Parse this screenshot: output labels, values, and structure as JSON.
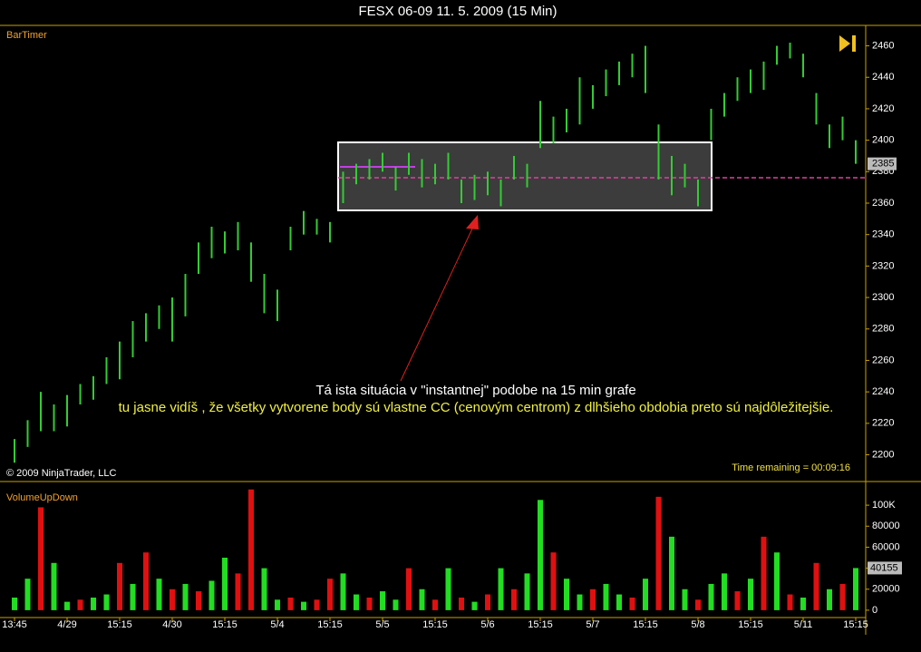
{
  "chart_data": [
    {
      "type": "ohlc",
      "title": "FESX 06-09  11. 5. 2009 (15 Min)",
      "indicator": "BarTimer",
      "copyright": "© 2009 NinjaTrader, LLC",
      "timer": "Time remaining = 00:09:16",
      "annotations": [
        "Tá ista situácia v \"instantnej\" podobe na 15 min grafe",
        "tu jasne vidíš , že všetky vytvorene body sú vlastne CC (cenovým centrom) z dlhšieho obdobia preto sú najdôležitejšie."
      ],
      "color": "#33cc33",
      "high": [
        2210,
        2222,
        2240,
        2232,
        2238,
        2245,
        2250,
        2262,
        2272,
        2285,
        2290,
        2295,
        2300,
        2315,
        2335,
        2345,
        2342,
        2348,
        2335,
        2315,
        2305,
        2345,
        2355,
        2350,
        2348,
        2380,
        2385,
        2388,
        2392,
        2383,
        2392,
        2388,
        2385,
        2392,
        2375,
        2378,
        2380,
        2375,
        2390,
        2385,
        2425,
        2415,
        2420,
        2440,
        2435,
        2445,
        2450,
        2455,
        2460,
        2410,
        2390,
        2385,
        2375,
        2420,
        2430,
        2440,
        2445,
        2450,
        2460,
        2462,
        2455,
        2430,
        2410,
        2415,
        2400
      ],
      "low": [
        2195,
        2205,
        2215,
        2215,
        2218,
        2232,
        2235,
        2245,
        2248,
        2262,
        2272,
        2280,
        2272,
        2288,
        2315,
        2325,
        2328,
        2330,
        2310,
        2290,
        2285,
        2330,
        2340,
        2340,
        2335,
        2360,
        2372,
        2375,
        2380,
        2368,
        2378,
        2370,
        2372,
        2375,
        2360,
        2362,
        2365,
        2358,
        2375,
        2370,
        2395,
        2398,
        2405,
        2410,
        2420,
        2428,
        2435,
        2440,
        2430,
        2375,
        2365,
        2370,
        2358,
        2400,
        2415,
        2425,
        2430,
        2432,
        2448,
        2452,
        2440,
        2410,
        2395,
        2400,
        2385
      ],
      "last_price": 2385,
      "ylim": [
        2183,
        2473
      ],
      "yticks": [
        2200,
        2220,
        2240,
        2260,
        2280,
        2300,
        2320,
        2340,
        2360,
        2380,
        2400,
        2420,
        2440,
        2460
      ]
    },
    {
      "type": "bar",
      "title": "VolumeUpDown",
      "categories": [
        "13:45",
        null,
        null,
        null,
        "4/29",
        null,
        null,
        null,
        "15:15",
        null,
        null,
        null,
        "4/30",
        null,
        null,
        null,
        "15:15",
        null,
        null,
        null,
        "5/4",
        null,
        null,
        null,
        "15:15",
        null,
        null,
        null,
        "5/5",
        null,
        null,
        null,
        "15:15",
        null,
        null,
        null,
        "5/6",
        null,
        null,
        null,
        "15:15",
        null,
        null,
        null,
        "5/7",
        null,
        null,
        null,
        "15:15",
        null,
        null,
        null,
        "5/8",
        null,
        null,
        null,
        "15:15",
        null,
        null,
        null,
        "5/11",
        null,
        null,
        null,
        "15:15"
      ],
      "values": [
        12000,
        30000,
        98000,
        45000,
        8000,
        10000,
        12000,
        15000,
        45000,
        25000,
        55000,
        30000,
        20000,
        25000,
        18000,
        28000,
        50000,
        35000,
        115000,
        40000,
        10000,
        12000,
        8000,
        10000,
        30000,
        35000,
        15000,
        12000,
        18000,
        10000,
        40000,
        20000,
        10000,
        40000,
        12000,
        8000,
        15000,
        40000,
        20000,
        35000,
        105000,
        55000,
        30000,
        15000,
        20000,
        25000,
        15000,
        12000,
        30000,
        108000,
        70000,
        20000,
        10000,
        25000,
        35000,
        18000,
        30000,
        70000,
        55000,
        15000,
        12000,
        45000,
        20000,
        25000,
        40155
      ],
      "colors": [
        "#22dd22",
        "#22dd22",
        "#e01010",
        "#22dd22",
        "#22dd22",
        "#e01010",
        "#22dd22",
        "#22dd22",
        "#e01010",
        "#22dd22",
        "#e01010",
        "#22dd22",
        "#e01010",
        "#22dd22",
        "#e01010",
        "#22dd22",
        "#22dd22",
        "#e01010",
        "#e01010",
        "#22dd22",
        "#22dd22",
        "#e01010",
        "#22dd22",
        "#e01010",
        "#e01010",
        "#22dd22",
        "#22dd22",
        "#e01010",
        "#22dd22",
        "#22dd22",
        "#e01010",
        "#22dd22",
        "#e01010",
        "#22dd22",
        "#e01010",
        "#22dd22",
        "#e01010",
        "#22dd22",
        "#e01010",
        "#22dd22",
        "#22dd22",
        "#e01010",
        "#22dd22",
        "#22dd22",
        "#e01010",
        "#22dd22",
        "#22dd22",
        "#e01010",
        "#22dd22",
        "#e01010",
        "#22dd22",
        "#22dd22",
        "#e01010",
        "#22dd22",
        "#22dd22",
        "#e01010",
        "#22dd22",
        "#e01010",
        "#22dd22",
        "#e01010",
        "#22dd22",
        "#e01010",
        "#22dd22",
        "#e01010",
        "#22dd22"
      ],
      "last_volume": 40155,
      "ylim": [
        -7000,
        116500
      ],
      "yticks": [
        0,
        20000,
        40000,
        60000,
        80000,
        {
          "value": 100000,
          "label": "100K"
        }
      ]
    }
  ]
}
